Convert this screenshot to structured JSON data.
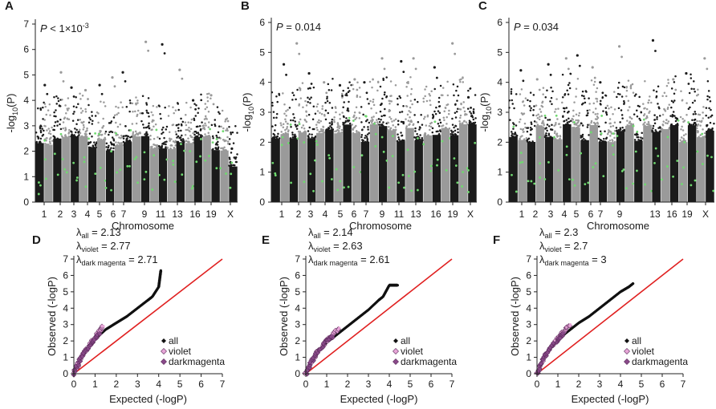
{
  "chart_data": [
    {
      "id": "A",
      "type": "scatter",
      "subtype": "manhattan",
      "annotation_prefix": "P",
      "annotation_value": "< 1×10",
      "annotation_exp": "-3",
      "ylabel_base": "-log",
      "ylabel_sub": "10",
      "ylabel_end": "(P)",
      "xlabel": "Chromosome",
      "ylim": [
        0,
        7
      ],
      "yticks": [
        "0",
        "1",
        "2",
        "3",
        "4",
        "5",
        "6",
        "7"
      ],
      "chromosome_labels": [
        "1",
        "2",
        "3",
        "4",
        "5",
        "6",
        "7",
        "9",
        "11",
        "13",
        "16",
        "19",
        "X"
      ],
      "colors": {
        "odd": "#1b1b1b",
        "even": "#9a9a9a",
        "highlight": "#6fd96f"
      },
      "top_hits": [
        {
          "chromosome": "1",
          "value": 4.6
        },
        {
          "chromosome": "2",
          "value": 5.1
        },
        {
          "chromosome": "3",
          "value": 4.5
        },
        {
          "chromosome": "4",
          "value": 4.4
        },
        {
          "chromosome": "5",
          "value": 4.6
        },
        {
          "chromosome": "6",
          "value": 4.9
        },
        {
          "chromosome": "7",
          "value": 5.1
        },
        {
          "chromosome": "9",
          "value": 6.3
        },
        {
          "chromosome": "11",
          "value": 6.2
        },
        {
          "chromosome": "13",
          "value": 5.2
        },
        {
          "chromosome": "16",
          "value": 4.0
        },
        {
          "chromosome": "19",
          "value": 4.2
        },
        {
          "chromosome": "X",
          "value": 2.1
        }
      ]
    },
    {
      "id": "B",
      "type": "scatter",
      "subtype": "manhattan",
      "annotation_prefix": "P",
      "annotation_value": "= 0.014",
      "annotation_exp": "",
      "ylabel_base": "-log",
      "ylabel_sub": "10",
      "ylabel_end": "(P)",
      "xlabel": "Chromosome",
      "ylim": [
        0,
        6
      ],
      "yticks": [
        "0",
        "1",
        "2",
        "3",
        "4",
        "5",
        "6"
      ],
      "chromosome_labels": [
        "1",
        "2",
        "3",
        "4",
        "5",
        "6",
        "7",
        "9",
        "11",
        "13",
        "16",
        "19",
        "X"
      ],
      "colors": {
        "odd": "#1b1b1b",
        "even": "#9a9a9a",
        "highlight": "#6fd96f"
      },
      "top_hits": [
        {
          "chromosome": "1",
          "value": 4.6
        },
        {
          "chromosome": "2",
          "value": 5.3
        },
        {
          "chromosome": "3",
          "value": 4.3
        },
        {
          "chromosome": "4",
          "value": 4.0
        },
        {
          "chromosome": "5",
          "value": 3.9
        },
        {
          "chromosome": "6",
          "value": 4.1
        },
        {
          "chromosome": "7",
          "value": 4.0
        },
        {
          "chromosome": "9",
          "value": 4.8
        },
        {
          "chromosome": "11",
          "value": 4.7
        },
        {
          "chromosome": "13",
          "value": 4.8
        },
        {
          "chromosome": "16",
          "value": 4.5
        },
        {
          "chromosome": "19",
          "value": 5.3
        },
        {
          "chromosome": "X",
          "value": 3.5
        }
      ]
    },
    {
      "id": "C",
      "type": "scatter",
      "subtype": "manhattan",
      "annotation_prefix": "P",
      "annotation_value": "= 0.034",
      "annotation_exp": "",
      "ylabel_base": "-log",
      "ylabel_sub": "10",
      "ylabel_end": "(P)",
      "xlabel": "Chromosome",
      "ylim": [
        0,
        6
      ],
      "yticks": [
        "0",
        "1",
        "2",
        "3",
        "4",
        "5",
        "6"
      ],
      "chromosome_labels": [
        "1",
        "2",
        "3",
        "4",
        "5",
        "6",
        "7",
        "9",
        "13",
        "16",
        "19",
        "X"
      ],
      "colors": {
        "odd": "#1b1b1b",
        "even": "#9a9a9a",
        "highlight": "#6fd96f"
      },
      "top_hits": [
        {
          "chromosome": "1",
          "value": 4.4
        },
        {
          "chromosome": "2",
          "value": 4.1
        },
        {
          "chromosome": "3",
          "value": 4.6
        },
        {
          "chromosome": "4",
          "value": 4.8
        },
        {
          "chromosome": "5",
          "value": 4.9
        },
        {
          "chromosome": "6",
          "value": 4.5
        },
        {
          "chromosome": "7",
          "value": 4.0
        },
        {
          "chromosome": "9",
          "value": 5.2
        },
        {
          "chromosome": "13",
          "value": 5.4
        },
        {
          "chromosome": "16",
          "value": 4.1
        },
        {
          "chromosome": "19",
          "value": 4.3
        },
        {
          "chromosome": "X",
          "value": 4.8
        }
      ]
    },
    {
      "id": "D",
      "type": "scatter",
      "subtype": "qq",
      "xlabel": "Expected (-logP)",
      "ylabel": "Observed (-logP)",
      "xlim": [
        0,
        7
      ],
      "ylim": [
        0,
        7
      ],
      "xticks": [
        "0",
        "1",
        "2",
        "3",
        "4",
        "5",
        "6",
        "7"
      ],
      "yticks": [
        "0",
        "1",
        "2",
        "3",
        "4",
        "5",
        "6",
        "7"
      ],
      "lambdas": [
        {
          "sub": "all",
          "value": "2.13"
        },
        {
          "sub": "violet",
          "value": "2.77"
        },
        {
          "sub": "dark magenta",
          "value": "2.71"
        }
      ],
      "legend": [
        {
          "label": "all",
          "color": "#111111"
        },
        {
          "label": "violet",
          "color": "#e8a6d8"
        },
        {
          "label": "darkmagenta",
          "color": "#8a4a8a"
        }
      ],
      "series": [
        {
          "name": "all",
          "x": [
            0,
            0.5,
            1,
            1.5,
            2,
            2.5,
            3,
            3.5,
            3.7,
            4.0,
            4.1
          ],
          "y": [
            0,
            1.3,
            2.1,
            2.7,
            3.1,
            3.5,
            4.0,
            4.5,
            4.7,
            5.3,
            6.3
          ]
        },
        {
          "name": "violet",
          "x": [
            0,
            0.3,
            0.6,
            1.0,
            1.2,
            1.4
          ],
          "y": [
            0,
            0.9,
            1.5,
            2.2,
            2.6,
            2.9
          ]
        },
        {
          "name": "darkmagenta",
          "x": [
            0,
            0.3,
            0.6,
            0.9,
            1.2
          ],
          "y": [
            0,
            0.9,
            1.5,
            2.0,
            2.5
          ]
        }
      ],
      "reference_line": "y = x"
    },
    {
      "id": "E",
      "type": "scatter",
      "subtype": "qq",
      "xlabel": "Expected (-logP)",
      "ylabel": "Observed (-logP)",
      "xlim": [
        0,
        7
      ],
      "ylim": [
        0,
        7
      ],
      "xticks": [
        "0",
        "1",
        "2",
        "3",
        "4",
        "5",
        "6",
        "7"
      ],
      "yticks": [
        "0",
        "1",
        "2",
        "3",
        "4",
        "5",
        "6",
        "7"
      ],
      "lambdas": [
        {
          "sub": "all",
          "value": "2.14"
        },
        {
          "sub": "violet",
          "value": "2.63"
        },
        {
          "sub": "dark magenta",
          "value": "2.61"
        }
      ],
      "legend": [
        {
          "label": "all",
          "color": "#111111"
        },
        {
          "label": "violet",
          "color": "#e8a6d8"
        },
        {
          "label": "darkmagenta",
          "color": "#8a4a8a"
        }
      ],
      "series": [
        {
          "name": "all",
          "x": [
            0,
            0.5,
            1,
            1.5,
            2,
            2.5,
            3,
            3.5,
            3.7,
            4.0,
            4.4
          ],
          "y": [
            0,
            1.2,
            1.9,
            2.4,
            2.9,
            3.4,
            3.9,
            4.5,
            4.7,
            5.4,
            5.4
          ]
        },
        {
          "name": "violet",
          "x": [
            0,
            0.3,
            0.6,
            1.0,
            1.3,
            1.6
          ],
          "y": [
            0,
            0.8,
            1.4,
            2.0,
            2.4,
            2.8
          ]
        },
        {
          "name": "darkmagenta",
          "x": [
            0,
            0.3,
            0.6,
            1.0,
            1.3
          ],
          "y": [
            0,
            0.8,
            1.4,
            2.0,
            2.3
          ]
        }
      ],
      "reference_line": "y = x"
    },
    {
      "id": "F",
      "type": "scatter",
      "subtype": "qq",
      "xlabel": "Expected (-logP)",
      "ylabel": "Observed (-logP)",
      "xlim": [
        0,
        7
      ],
      "ylim": [
        0,
        7
      ],
      "xticks": [
        "0",
        "1",
        "2",
        "3",
        "4",
        "5",
        "6",
        "7"
      ],
      "yticks": [
        "0",
        "1",
        "2",
        "3",
        "4",
        "5",
        "6",
        "7"
      ],
      "lambdas": [
        {
          "sub": "all",
          "value": "2.3"
        },
        {
          "sub": "violet",
          "value": "2.7"
        },
        {
          "sub": "dark magenta",
          "value": "3"
        }
      ],
      "legend": [
        {
          "label": "all",
          "color": "#111111"
        },
        {
          "label": "violet",
          "color": "#e8a6d8"
        },
        {
          "label": "darkmagenta",
          "color": "#8a4a8a"
        }
      ],
      "series": [
        {
          "name": "all",
          "x": [
            0,
            0.5,
            1,
            1.5,
            2,
            2.5,
            3,
            3.5,
            4.0,
            4.4,
            4.6
          ],
          "y": [
            0,
            1.3,
            2.1,
            2.6,
            3.1,
            3.5,
            4.0,
            4.5,
            5.0,
            5.3,
            5.5
          ]
        },
        {
          "name": "violet",
          "x": [
            0,
            0.3,
            0.6,
            1.0,
            1.3,
            1.6
          ],
          "y": [
            0,
            0.9,
            1.5,
            2.2,
            2.6,
            3.0
          ]
        },
        {
          "name": "darkmagenta",
          "x": [
            0,
            0.3,
            0.6,
            1.0,
            1.3
          ],
          "y": [
            0,
            0.9,
            1.5,
            2.1,
            2.5
          ]
        }
      ],
      "reference_line": "y = x"
    }
  ]
}
